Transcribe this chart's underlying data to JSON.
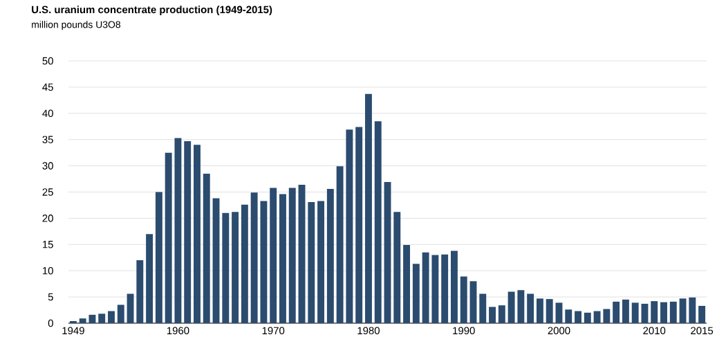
{
  "chart_data": {
    "type": "bar",
    "title": "U.S. uranium concentrate production (1949-2015)",
    "subtitle": "million pounds U3O8",
    "x": [
      1949,
      1950,
      1951,
      1952,
      1953,
      1954,
      1955,
      1956,
      1957,
      1958,
      1959,
      1960,
      1961,
      1962,
      1963,
      1964,
      1965,
      1966,
      1967,
      1968,
      1969,
      1970,
      1971,
      1972,
      1973,
      1974,
      1975,
      1976,
      1977,
      1978,
      1979,
      1980,
      1981,
      1982,
      1983,
      1984,
      1985,
      1986,
      1987,
      1988,
      1989,
      1990,
      1991,
      1992,
      1993,
      1994,
      1995,
      1996,
      1997,
      1998,
      1999,
      2000,
      2001,
      2002,
      2003,
      2004,
      2005,
      2006,
      2007,
      2008,
      2009,
      2010,
      2011,
      2012,
      2013,
      2014,
      2015
    ],
    "values": [
      0.4,
      0.9,
      1.6,
      1.8,
      2.3,
      3.5,
      5.6,
      12,
      17,
      25,
      32.5,
      35.3,
      34.7,
      34,
      28.5,
      23.8,
      21,
      21.2,
      22.6,
      24.9,
      23.3,
      25.8,
      24.6,
      25.8,
      26.4,
      23.1,
      23.3,
      25.6,
      29.9,
      36.9,
      37.4,
      43.7,
      38.5,
      26.9,
      21.2,
      14.9,
      11.3,
      13.5,
      13,
      13.1,
      13.8,
      8.9,
      8,
      5.6,
      3.1,
      3.4,
      6,
      6.3,
      5.6,
      4.7,
      4.6,
      3.9,
      2.6,
      2.3,
      2,
      2.3,
      2.7,
      4.1,
      4.5,
      3.9,
      3.7,
      4.2,
      4,
      4.1,
      4.7,
      4.9,
      3.3
    ],
    "color": "#2b4c6f",
    "xlim": [
      1948.5,
      2015.5
    ],
    "xticks": [
      1949,
      1960,
      1970,
      1980,
      1990,
      2000,
      2010,
      2015
    ],
    "ylim": [
      0,
      50
    ],
    "yticks": [
      0,
      5,
      10,
      15,
      20,
      25,
      30,
      35,
      40,
      45,
      50
    ],
    "grid": "y"
  }
}
